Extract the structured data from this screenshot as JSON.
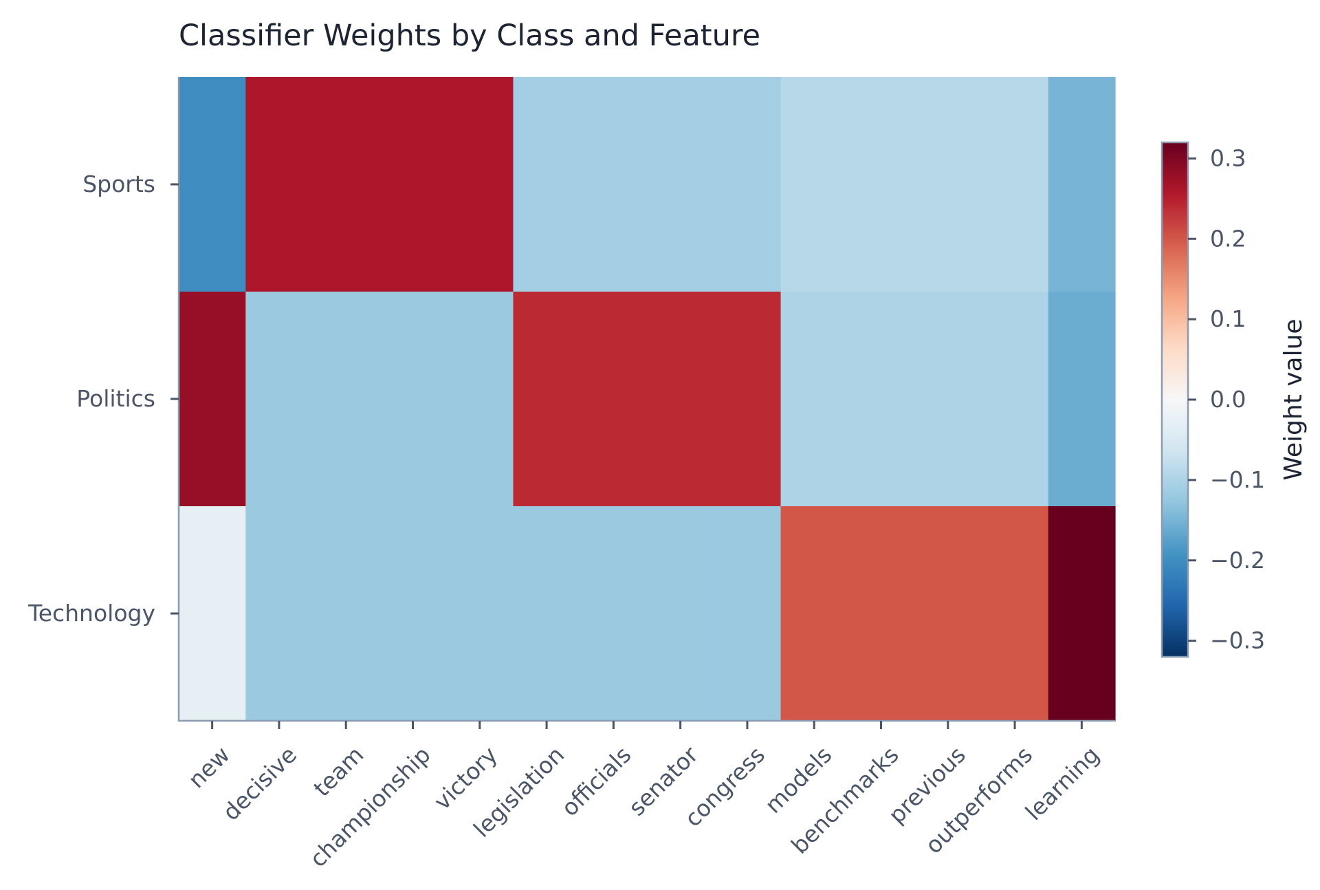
{
  "chart_data": {
    "type": "heatmap",
    "title": "Classifier Weights by Class and Feature",
    "xlabel": "",
    "ylabel": "",
    "rows": [
      "Sports",
      "Politics",
      "Technology"
    ],
    "columns": [
      "new",
      "decisive",
      "team",
      "championship",
      "victory",
      "legislation",
      "officials",
      "senator",
      "congress",
      "models",
      "benchmarks",
      "previous",
      "outperforms",
      "learning"
    ],
    "values": [
      [
        -0.2,
        0.26,
        0.26,
        0.26,
        0.26,
        -0.11,
        -0.11,
        -0.11,
        -0.11,
        -0.09,
        -0.09,
        -0.09,
        -0.09,
        -0.15
      ],
      [
        0.28,
        -0.12,
        -0.12,
        -0.12,
        -0.12,
        0.24,
        0.24,
        0.24,
        0.24,
        -0.1,
        -0.1,
        -0.1,
        -0.1,
        -0.16
      ],
      [
        -0.03,
        -0.12,
        -0.12,
        -0.12,
        -0.12,
        -0.12,
        -0.12,
        -0.12,
        -0.12,
        0.2,
        0.2,
        0.2,
        0.2,
        0.32
      ]
    ],
    "colormap": "RdBu_r",
    "colorbar": {
      "label": "Weight value",
      "range": [
        -0.32,
        0.32
      ],
      "ticks": [
        0.3,
        0.2,
        0.1,
        0.0,
        -0.1,
        -0.2,
        -0.3
      ],
      "tick_labels": [
        "0.3",
        "0.2",
        "0.1",
        "0.0",
        "−0.1",
        "−0.2",
        "−0.3"
      ]
    },
    "grid": false
  }
}
